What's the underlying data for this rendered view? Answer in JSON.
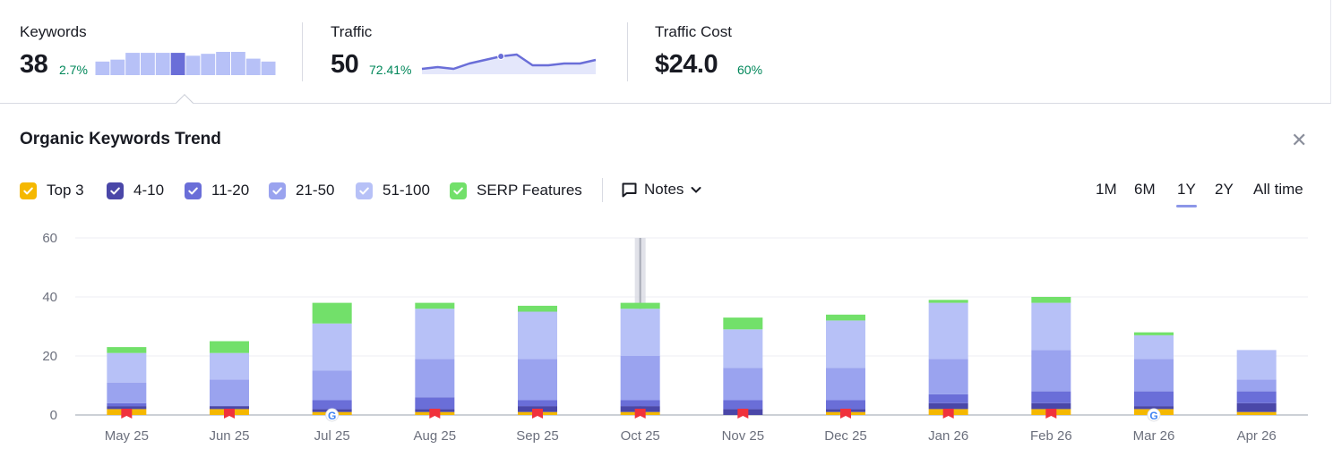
{
  "metrics": {
    "keywords": {
      "label": "Keywords",
      "value": "38",
      "delta": "2.7%"
    },
    "traffic": {
      "label": "Traffic",
      "value": "50",
      "delta": "72.41%"
    },
    "traffic_cost": {
      "label": "Traffic Cost",
      "value": "$24.0",
      "delta": "60%"
    }
  },
  "keywords_sparkline": {
    "values": [
      14,
      16,
      23,
      23,
      23,
      23,
      20,
      22,
      24,
      24,
      17,
      14
    ],
    "highlight_index": 5
  },
  "traffic_sparkline": {
    "values": [
      3,
      4,
      3,
      6,
      8,
      10,
      11,
      5,
      5,
      6,
      6,
      8
    ],
    "highlight_index": 5
  },
  "trend": {
    "title": "Organic Keywords Trend",
    "close_icon": "close-icon",
    "legend": [
      {
        "label": "Top 3",
        "color": "#f5b800"
      },
      {
        "label": "4-10",
        "color": "#4a47a8"
      },
      {
        "label": "11-20",
        "color": "#6a6ed8"
      },
      {
        "label": "21-50",
        "color": "#9aa3ef"
      },
      {
        "label": "51-100",
        "color": "#b7c1f7"
      },
      {
        "label": "SERP Features",
        "color": "#72e06a"
      }
    ],
    "notes_label": "Notes",
    "ranges": [
      "1M",
      "6M",
      "1Y",
      "2Y",
      "All time"
    ],
    "active_range": "1Y"
  },
  "chart_data": {
    "type": "bar",
    "stacked": true,
    "categories": [
      "May 25",
      "Jun 25",
      "Jul 25",
      "Aug 25",
      "Sep 25",
      "Oct 25",
      "Nov 25",
      "Dec 25",
      "Jan 26",
      "Feb 26",
      "Mar 26",
      "Apr 26"
    ],
    "series": [
      {
        "name": "Top 3",
        "color": "#f5b800",
        "values": [
          2,
          2,
          1,
          1,
          1,
          1,
          0,
          1,
          2,
          2,
          2,
          1
        ]
      },
      {
        "name": "4-10",
        "color": "#4a47a8",
        "values": [
          1,
          1,
          1,
          1,
          2,
          2,
          2,
          1,
          2,
          2,
          1,
          3
        ]
      },
      {
        "name": "11-20",
        "color": "#6a6ed8",
        "values": [
          1,
          0,
          3,
          4,
          2,
          2,
          3,
          3,
          3,
          4,
          5,
          4
        ]
      },
      {
        "name": "21-50",
        "color": "#9aa3ef",
        "values": [
          7,
          9,
          10,
          13,
          14,
          15,
          11,
          11,
          12,
          14,
          11,
          4
        ]
      },
      {
        "name": "51-100",
        "color": "#b7c1f7",
        "values": [
          10,
          9,
          16,
          17,
          16,
          16,
          13,
          16,
          19,
          16,
          8,
          10
        ]
      },
      {
        "name": "SERP Features",
        "color": "#72e06a",
        "values": [
          2,
          4,
          7,
          2,
          2,
          2,
          4,
          2,
          1,
          2,
          1,
          0
        ]
      }
    ],
    "ylim": [
      0,
      60
    ],
    "yticks": [
      0,
      20,
      40,
      60
    ],
    "grid": true,
    "markers": [
      "flag",
      "flag",
      "google",
      "flag",
      "flag",
      "flag",
      "flag",
      "flag",
      "flag",
      "flag",
      "google",
      "none"
    ],
    "hover_index": 5
  }
}
